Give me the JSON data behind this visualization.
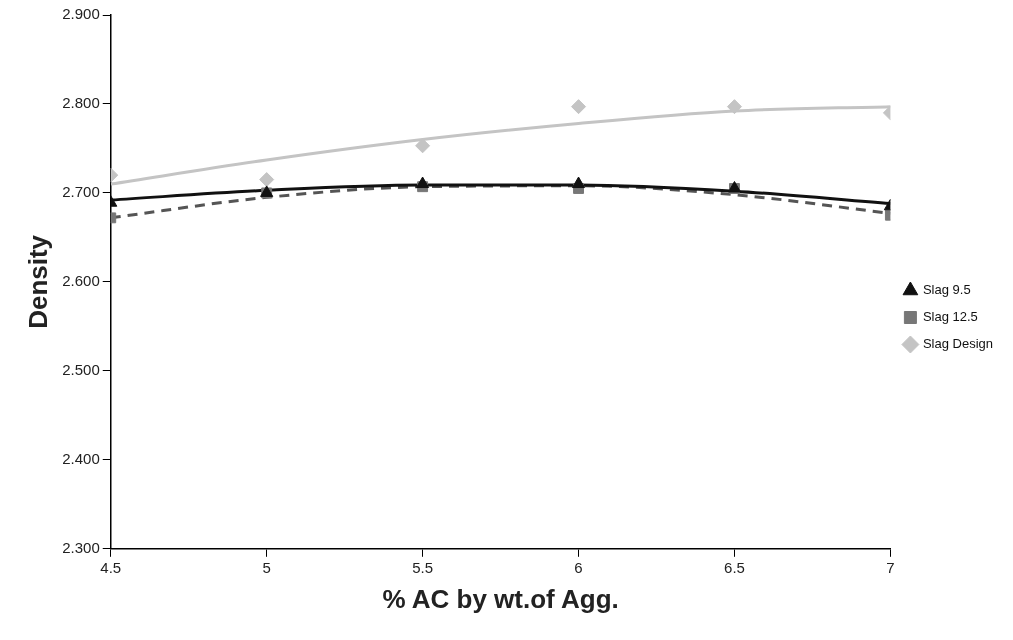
{
  "chart_data": {
    "type": "scatter",
    "xlabel": "% AC by wt.of Agg.",
    "ylabel": "Density",
    "x": [
      4.5,
      5,
      5.5,
      6,
      6.5,
      7
    ],
    "series": [
      {
        "name": "Slag 9.5",
        "color": "#111111",
        "marker": "triangle",
        "values": [
          2.689,
          2.7,
          2.71,
          2.71,
          2.705,
          2.685
        ]
      },
      {
        "name": "Slag 12.5",
        "color": "#777777",
        "marker": "square",
        "values": [
          2.672,
          2.7,
          2.707,
          2.705,
          2.705,
          2.675
        ]
      },
      {
        "name": "Slag Design",
        "color": "#c4c4c4",
        "marker": "diamond",
        "values": [
          2.72,
          2.715,
          2.753,
          2.797,
          2.797,
          2.79
        ]
      },
      {
        "type": "line",
        "color": "#111111",
        "marker": "none",
        "line_style": "solid",
        "x": [
          4.5,
          5,
          5.5,
          6,
          6.5,
          7
        ],
        "values": [
          2.692,
          2.703,
          2.709,
          2.709,
          2.702,
          2.688
        ]
      },
      {
        "type": "line",
        "color": "#555555",
        "marker": "none",
        "line_style": "dashed",
        "x": [
          4.5,
          5,
          5.5,
          6,
          6.5,
          7
        ],
        "values": [
          2.672,
          2.695,
          2.707,
          2.708,
          2.698,
          2.677
        ]
      },
      {
        "type": "line",
        "color": "#c4c4c4",
        "marker": "none",
        "line_style": "solid",
        "x": [
          4.5,
          5,
          5.5,
          6,
          6.5,
          7
        ],
        "values": [
          2.71,
          2.737,
          2.76,
          2.778,
          2.792,
          2.797
        ]
      }
    ],
    "xlim": [
      4.5,
      7
    ],
    "xticks": [
      4.5,
      5,
      5.5,
      6,
      6.5,
      7
    ],
    "ylim": [
      2.3,
      2.9
    ],
    "yticks": [
      {
        "value": 2.3,
        "label": "2.300"
      },
      {
        "value": 2.4,
        "label": "2.400"
      },
      {
        "value": 2.5,
        "label": "2.500"
      },
      {
        "value": 2.6,
        "label": "2.600"
      },
      {
        "value": 2.7,
        "label": "2.700"
      },
      {
        "value": 2.8,
        "label": "2.800"
      },
      {
        "value": 2.9,
        "label": "2.900"
      }
    ],
    "grid": false,
    "legend": "right"
  }
}
